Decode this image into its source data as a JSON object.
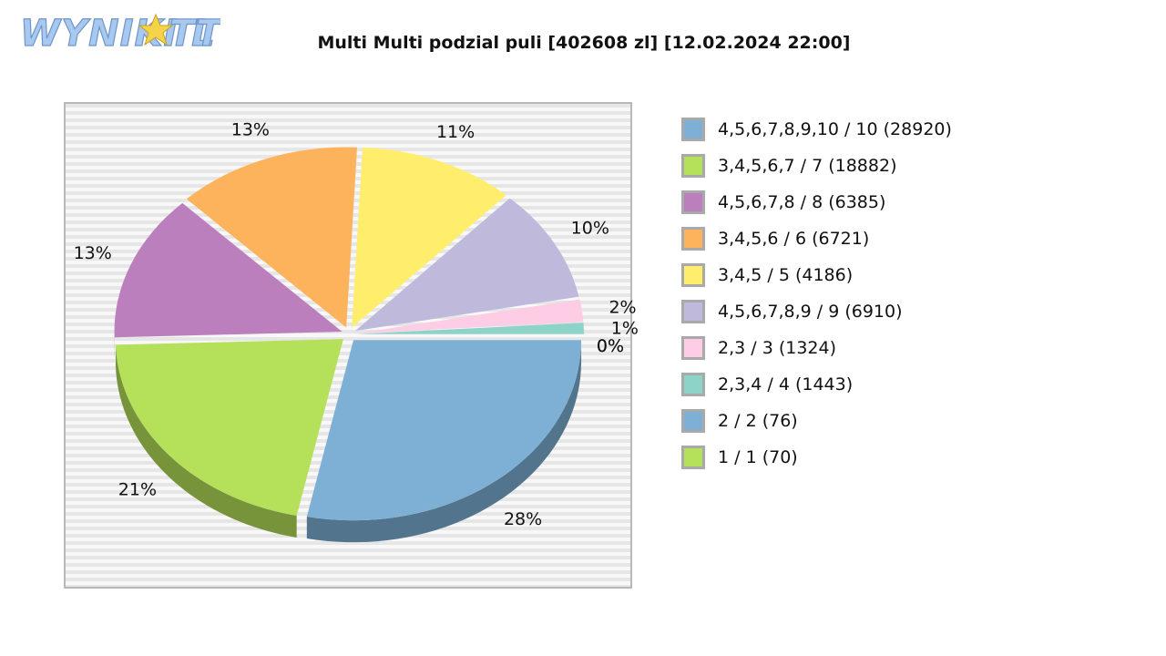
{
  "logo": {
    "text": "WYNIKI LOTTO",
    "colors": {
      "fill": "#a7c9f0",
      "star": "#f6d44a"
    }
  },
  "chart_data": {
    "type": "pie",
    "title": "Multi Multi podzial puli [402608 zl] [12.02.2024 22:00]",
    "style": "3d-exploded",
    "legend_position": "right",
    "slices": [
      {
        "label": "4,5,6,7,8,9,10 / 10 (28920)",
        "percent_label": "28%",
        "value": 28,
        "color": "#7eafd5"
      },
      {
        "label": "3,4,5,6,7 / 7 (18882)",
        "percent_label": "21%",
        "value": 21,
        "color": "#b5e05a"
      },
      {
        "label": "4,5,6,7,8 / 8 (6385)",
        "percent_label": "13%",
        "value": 13,
        "color": "#bc7fbd"
      },
      {
        "label": "3,4,5,6 / 6 (6721)",
        "percent_label": "13%",
        "value": 13,
        "color": "#fdb35c"
      },
      {
        "label": "3,4,5 / 5 (4186)",
        "percent_label": "11%",
        "value": 11,
        "color": "#ffed6c"
      },
      {
        "label": "4,5,6,7,8,9 / 9 (6910)",
        "percent_label": "10%",
        "value": 10,
        "color": "#bfb9dc"
      },
      {
        "label": "2,3 / 3 (1324)",
        "percent_label": "2%",
        "value": 2,
        "color": "#fccde5"
      },
      {
        "label": "2,3,4 / 4 (1443)",
        "percent_label": "1%",
        "value": 1,
        "color": "#8ed3c7"
      },
      {
        "label": "2 / 2 (76)",
        "percent_label": "0%",
        "value": 0,
        "color": "#7eafd5"
      },
      {
        "label": "1 / 1 (70)",
        "percent_label": "0%",
        "value": 0,
        "color": "#b5e05a"
      }
    ]
  }
}
